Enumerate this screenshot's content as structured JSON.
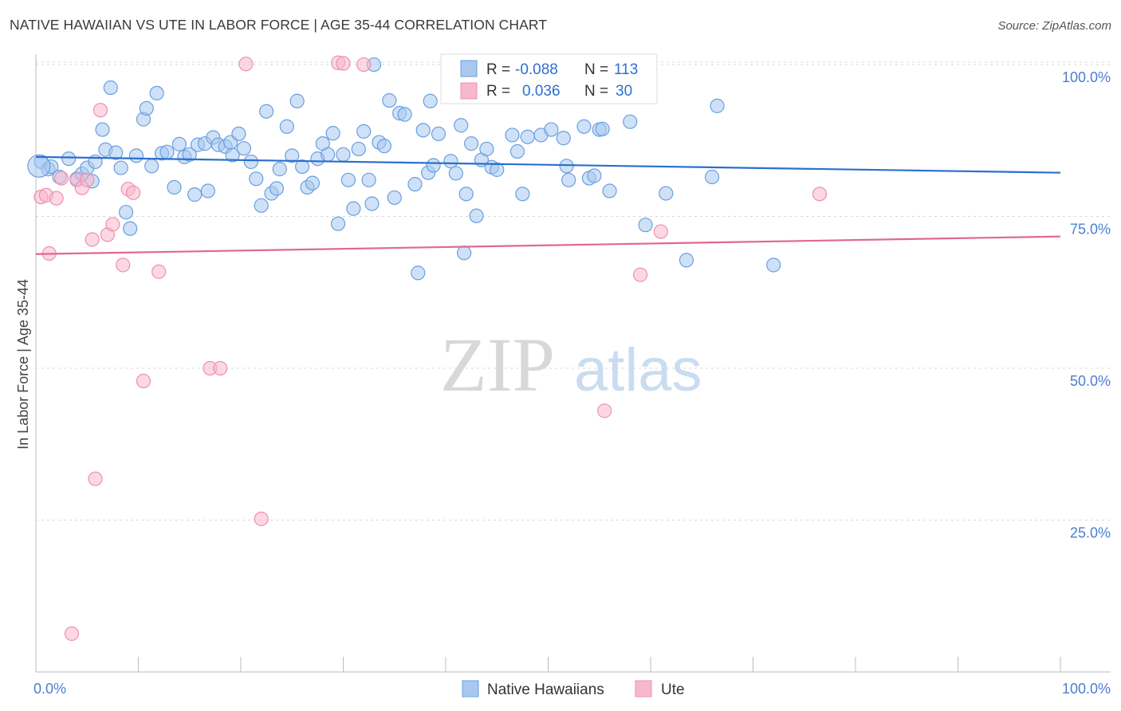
{
  "header": {
    "title": "NATIVE HAWAIIAN VS UTE IN LABOR FORCE | AGE 35-44 CORRELATION CHART",
    "source": "Source: ZipAtlas.com"
  },
  "watermark": {
    "zip": "ZIP",
    "atlas": "atlas"
  },
  "legend": {
    "rows": [
      {
        "r_label": "R =",
        "r_value": "-0.088",
        "n_label": "N =",
        "n_value": "113"
      },
      {
        "r_label": "R =",
        "r_value": "0.036",
        "n_label": "N =",
        "n_value": "30"
      }
    ]
  },
  "bottom_legend": {
    "items": [
      "Native Hawaiians",
      "Ute"
    ]
  },
  "colors": {
    "blue_fill": "#a8c8f0",
    "blue_stroke": "#6a9fe0",
    "blue_line": "#2a6fcf",
    "pink_fill": "#f7b8cc",
    "pink_stroke": "#ef8fb0",
    "pink_line": "#e06890",
    "tick_text": "#4a7fd0",
    "grid": "#d8d8d8"
  },
  "chart_data": {
    "type": "scatter",
    "title": "NATIVE HAWAIIAN VS UTE IN LABOR FORCE | AGE 35-44 CORRELATION CHART",
    "xlabel": "",
    "ylabel": "In Labor Force | Age 35-44",
    "xlim": [
      0,
      100
    ],
    "ylim": [
      0,
      102.5
    ],
    "x_tick_labels": [
      "0.0%",
      "100.0%"
    ],
    "y_ticks": [
      25,
      50,
      75,
      100
    ],
    "y_tick_labels": [
      "25.0%",
      "50.0%",
      "75.0%",
      "100.0%"
    ],
    "series": [
      {
        "name": "Native Hawaiians",
        "R": -0.088,
        "N": 113,
        "trend": {
          "x": [
            0,
            100
          ],
          "y": [
            84.8,
            82.2
          ]
        },
        "points": [
          [
            0.5,
            84
          ],
          [
            1.2,
            82.8
          ],
          [
            1.5,
            83.2
          ],
          [
            2.3,
            81.5
          ],
          [
            3.2,
            84.5
          ],
          [
            4.0,
            81.2
          ],
          [
            4.5,
            82
          ],
          [
            5.0,
            83
          ],
          [
            5.5,
            80.8
          ],
          [
            5.8,
            84
          ],
          [
            6.5,
            89.3
          ],
          [
            6.8,
            86
          ],
          [
            7.3,
            96.2
          ],
          [
            7.8,
            85.5
          ],
          [
            8.3,
            83
          ],
          [
            8.8,
            75.7
          ],
          [
            9.2,
            73
          ],
          [
            9.8,
            85
          ],
          [
            10.5,
            91
          ],
          [
            10.8,
            92.8
          ],
          [
            11.3,
            83.3
          ],
          [
            11.8,
            95.3
          ],
          [
            12.3,
            85.4
          ],
          [
            12.8,
            85.6
          ],
          [
            13.5,
            79.8
          ],
          [
            14.0,
            86.9
          ],
          [
            14.5,
            84.8
          ],
          [
            15.0,
            85.2
          ],
          [
            15.5,
            78.6
          ],
          [
            15.8,
            86.8
          ],
          [
            16.5,
            87
          ],
          [
            16.8,
            79.2
          ],
          [
            17.3,
            88
          ],
          [
            17.8,
            86.8
          ],
          [
            18.5,
            86.5
          ],
          [
            19.0,
            87.2
          ],
          [
            19.2,
            85.1
          ],
          [
            19.8,
            88.6
          ],
          [
            20.3,
            86.2
          ],
          [
            21.0,
            84
          ],
          [
            21.5,
            81.2
          ],
          [
            22.0,
            76.8
          ],
          [
            22.5,
            92.3
          ],
          [
            23.0,
            78.8
          ],
          [
            23.5,
            79.6
          ],
          [
            23.8,
            82.8
          ],
          [
            24.5,
            89.8
          ],
          [
            25.0,
            85
          ],
          [
            25.5,
            94
          ],
          [
            26.0,
            83.2
          ],
          [
            26.5,
            79.8
          ],
          [
            27.0,
            80.5
          ],
          [
            27.5,
            84.5
          ],
          [
            28.0,
            87
          ],
          [
            28.5,
            85.2
          ],
          [
            29.0,
            88.7
          ],
          [
            29.5,
            73.8
          ],
          [
            30.0,
            85.2
          ],
          [
            30.5,
            81
          ],
          [
            31.0,
            76.3
          ],
          [
            31.5,
            86.1
          ],
          [
            32.0,
            89
          ],
          [
            32.5,
            81
          ],
          [
            32.8,
            77.1
          ],
          [
            33.5,
            87.2
          ],
          [
            34.0,
            86.6
          ],
          [
            34.5,
            94.1
          ],
          [
            35.0,
            78.1
          ],
          [
            35.5,
            92
          ],
          [
            36.0,
            91.8
          ],
          [
            37.0,
            80.3
          ],
          [
            37.3,
            65.7
          ],
          [
            37.8,
            89.2
          ],
          [
            38.3,
            82.2
          ],
          [
            38.8,
            83.4
          ],
          [
            39.3,
            88.6
          ],
          [
            40.5,
            84.1
          ],
          [
            41.0,
            82.1
          ],
          [
            41.5,
            90
          ],
          [
            41.8,
            69
          ],
          [
            42.0,
            78.7
          ],
          [
            42.5,
            87
          ],
          [
            43.0,
            75.1
          ],
          [
            43.5,
            84.3
          ],
          [
            44.0,
            86.1
          ],
          [
            44.5,
            83.1
          ],
          [
            45.0,
            82.7
          ],
          [
            46.5,
            88.4
          ],
          [
            47.0,
            85.7
          ],
          [
            47.5,
            78.7
          ],
          [
            48.0,
            88.1
          ],
          [
            48.8,
            96
          ],
          [
            49.3,
            88.4
          ],
          [
            50.3,
            89.3
          ],
          [
            51.5,
            87.9
          ],
          [
            51.8,
            83.3
          ],
          [
            52.0,
            81
          ],
          [
            52.3,
            100.3
          ],
          [
            53.5,
            89.8
          ],
          [
            54.0,
            81.3
          ],
          [
            54.5,
            81.7
          ],
          [
            55.0,
            89.3
          ],
          [
            55.3,
            89.4
          ],
          [
            56.0,
            79.2
          ],
          [
            58.0,
            90.6
          ],
          [
            59.5,
            73.6
          ],
          [
            61.5,
            78.8
          ],
          [
            63.5,
            67.8
          ],
          [
            66.0,
            81.5
          ],
          [
            66.5,
            93.2
          ],
          [
            72.0,
            67
          ],
          [
            38.5,
            94
          ],
          [
            33.0,
            100
          ]
        ]
      },
      {
        "name": "Ute",
        "R": 0.036,
        "N": 30,
        "trend": {
          "x": [
            0,
            100
          ],
          "y": [
            68.8,
            71.7
          ]
        },
        "points": [
          [
            0.5,
            78.2
          ],
          [
            1.0,
            78.5
          ],
          [
            1.3,
            68.9
          ],
          [
            2.0,
            78
          ],
          [
            2.5,
            81.3
          ],
          [
            3.5,
            6.3
          ],
          [
            4.0,
            81
          ],
          [
            4.5,
            79.7
          ],
          [
            5.0,
            81
          ],
          [
            5.5,
            71.2
          ],
          [
            5.8,
            31.8
          ],
          [
            6.3,
            92.5
          ],
          [
            7.0,
            72
          ],
          [
            7.5,
            73.7
          ],
          [
            8.5,
            67
          ],
          [
            9.0,
            79.5
          ],
          [
            9.5,
            78.9
          ],
          [
            10.5,
            47.9
          ],
          [
            12.0,
            65.9
          ],
          [
            17.0,
            50
          ],
          [
            18.0,
            50
          ],
          [
            22.0,
            25.2
          ],
          [
            29.5,
            100.3
          ],
          [
            30.0,
            100.2
          ],
          [
            32.0,
            100
          ],
          [
            55.5,
            43
          ],
          [
            59.0,
            65.4
          ],
          [
            61.0,
            72.5
          ],
          [
            76.5,
            78.7
          ],
          [
            20.5,
            100.1
          ]
        ]
      }
    ]
  }
}
